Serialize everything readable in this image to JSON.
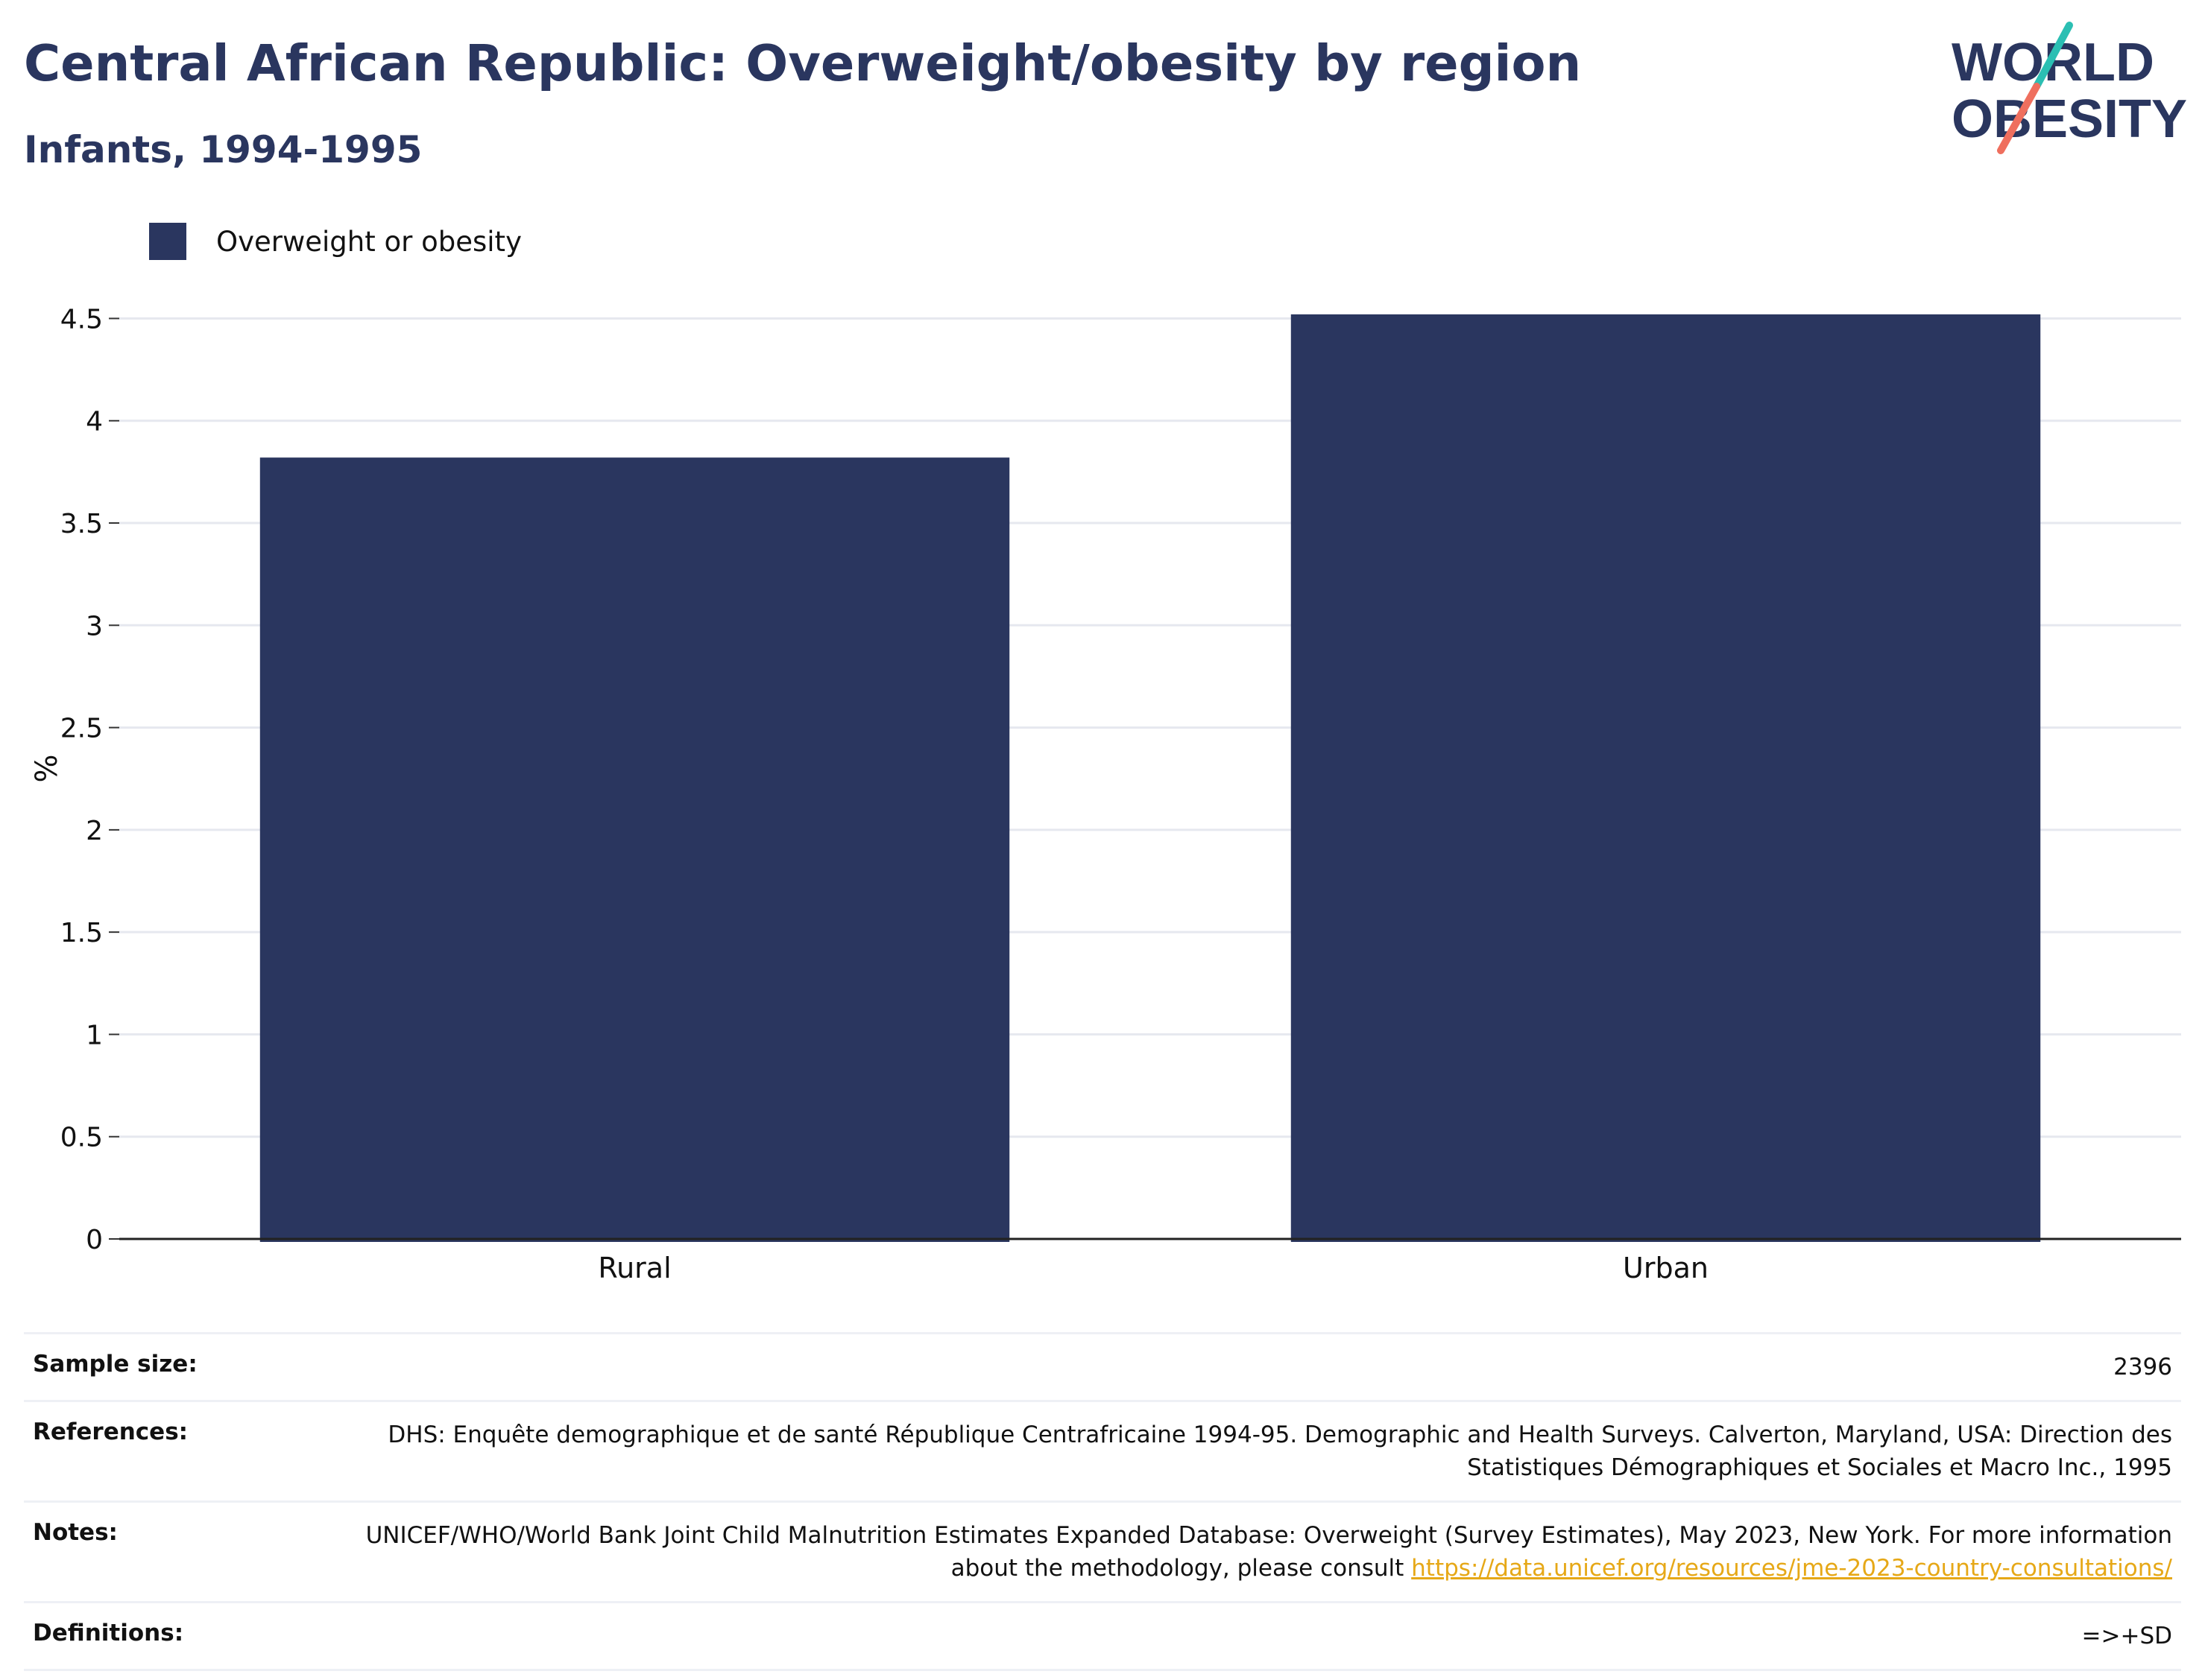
{
  "header": {
    "title": "Central African Republic: Overweight/obesity by region",
    "subtitle": "Infants, 1994-1995"
  },
  "logo": {
    "line1": "WORLD",
    "line2": "OBESITY"
  },
  "colors": {
    "bar": "#2a365f",
    "title": "#2a365f",
    "link": "#e6a817",
    "logo_teal": "#2bbfb3",
    "logo_coral": "#ef6f5e"
  },
  "chart_data": {
    "type": "bar",
    "categories": [
      "Rural",
      "Urban"
    ],
    "series": [
      {
        "name": "Overweight or obesity",
        "values": [
          3.82,
          4.52
        ]
      }
    ],
    "ylabel": "%",
    "xlabel": "",
    "ylim": [
      0,
      4.6
    ],
    "yticks": [
      0,
      0.5,
      1,
      1.5,
      2,
      2.5,
      3,
      3.5,
      4,
      4.5
    ],
    "ytick_labels": [
      "0",
      "0.5",
      "1",
      "1.5",
      "2",
      "2.5",
      "3",
      "3.5",
      "4",
      "4.5"
    ],
    "grid": true,
    "legend_position": "top-left"
  },
  "info": {
    "sample_size": {
      "label": "Sample size:",
      "value": "2396"
    },
    "references": {
      "label": "References:",
      "value": "DHS: Enquête demographique et de santé République Centrafricaine 1994-95. Demographic and Health Surveys. Calverton, Maryland, USA: Direction des Statistiques Démographiques et Sociales et Macro Inc., 1995"
    },
    "notes": {
      "label": "Notes:",
      "value": "UNICEF/WHO/World Bank Joint Child Malnutrition Estimates Expanded Database: Overweight (Survey Estimates), May 2023, New York. For more information about the methodology, please consult",
      "link": "https://data.unicef.org/resources/jme-2023-country-consultations/"
    },
    "definitions": {
      "label": "Definitions:",
      "value": "=>+SD"
    }
  }
}
